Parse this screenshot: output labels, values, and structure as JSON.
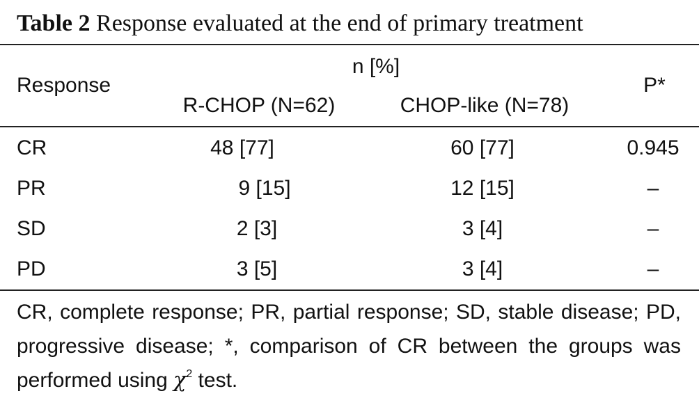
{
  "caption": {
    "label": "Table 2",
    "title": "Response evaluated at the end of primary treatment"
  },
  "table": {
    "row_header": "Response",
    "group_header": "n [%]",
    "columns": [
      "R-CHOP (N=62)",
      "CHOP-like (N=78)"
    ],
    "p_header": "P*",
    "rows": [
      {
        "response": "CR",
        "rchop": "48 [77]",
        "choplike": "60 [77]",
        "p": "0.945"
      },
      {
        "response": "PR",
        "rchop": "9 [15]",
        "choplike": "12 [15]",
        "p": "–"
      },
      {
        "response": "SD",
        "rchop": "2 [3]",
        "choplike": "3 [4]",
        "p": "–"
      },
      {
        "response": "PD",
        "rchop": "3 [5]",
        "choplike": "3 [4]",
        "p": "–"
      }
    ]
  },
  "footnote": {
    "text_before": "CR, complete response; PR, partial response; SD, stable disease; PD, progressive disease; *, comparison of CR between the groups was performed using ",
    "symbol": "χ",
    "superscript": "2",
    "text_after": " test."
  }
}
